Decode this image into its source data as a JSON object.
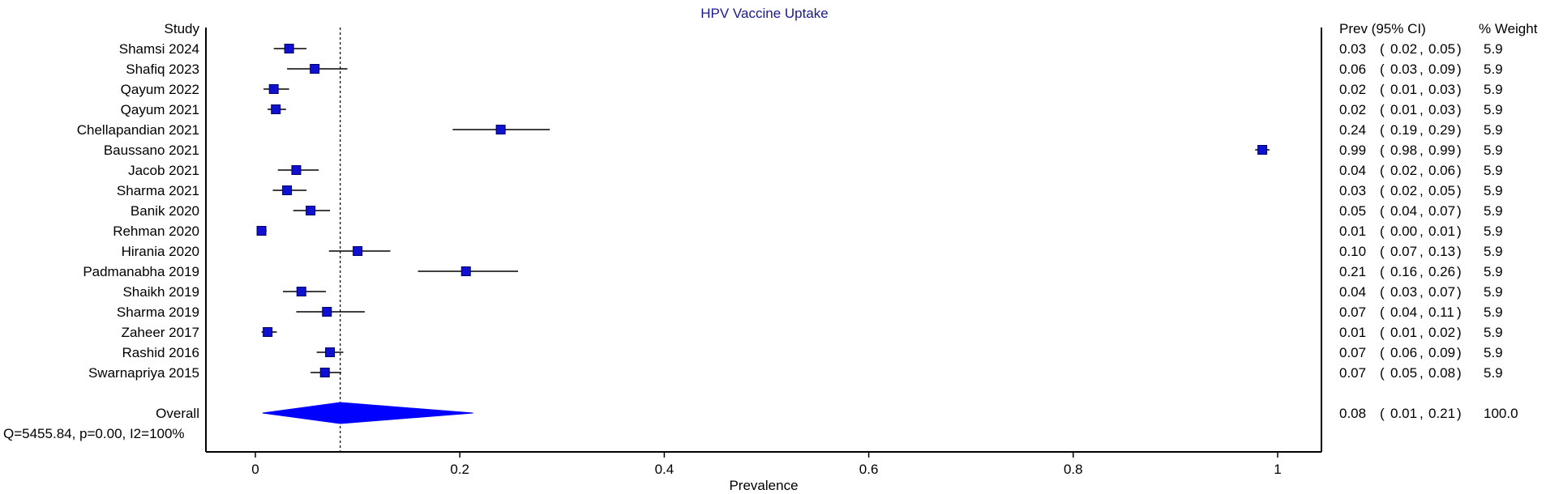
{
  "chart_data": {
    "type": "forest",
    "title": "HPV Vaccine Uptake",
    "xlabel": "Prevalence",
    "xlim": [
      -0.05,
      1.04
    ],
    "xticks": [
      0,
      0.2,
      0.4,
      0.6,
      0.8,
      1
    ],
    "xtick_labels": [
      "0",
      "0.2",
      "0.4",
      "0.6",
      "0.8",
      "1"
    ],
    "column_headers": {
      "study": "Study",
      "ci": "Prev (95% CI)",
      "weight": "% Weight"
    },
    "studies": [
      {
        "name": "Shamsi 2024",
        "prev": 0.033,
        "lo": 0.018,
        "hi": 0.05,
        "prev_text": "0.03",
        "lo_text": "0.02",
        "hi_text": "0.05",
        "weight": "5.9"
      },
      {
        "name": "Shafiq 2023",
        "prev": 0.058,
        "lo": 0.031,
        "hi": 0.09,
        "prev_text": "0.06",
        "lo_text": "0.03",
        "hi_text": "0.09",
        "weight": "5.9"
      },
      {
        "name": "Qayum 2022",
        "prev": 0.018,
        "lo": 0.008,
        "hi": 0.033,
        "prev_text": "0.02",
        "lo_text": "0.01",
        "hi_text": "0.03",
        "weight": "5.9"
      },
      {
        "name": "Qayum 2021",
        "prev": 0.02,
        "lo": 0.012,
        "hi": 0.03,
        "prev_text": "0.02",
        "lo_text": "0.01",
        "hi_text": "0.03",
        "weight": "5.9"
      },
      {
        "name": "Chellapandian 2021",
        "prev": 0.24,
        "lo": 0.193,
        "hi": 0.288,
        "prev_text": "0.24",
        "lo_text": "0.19",
        "hi_text": "0.29",
        "weight": "5.9"
      },
      {
        "name": "Baussano 2021",
        "prev": 0.985,
        "lo": 0.978,
        "hi": 0.992,
        "prev_text": "0.99",
        "lo_text": "0.98",
        "hi_text": "0.99",
        "weight": "5.9"
      },
      {
        "name": "Jacob 2021",
        "prev": 0.04,
        "lo": 0.022,
        "hi": 0.062,
        "prev_text": "0.04",
        "lo_text": "0.02",
        "hi_text": "0.06",
        "weight": "5.9"
      },
      {
        "name": "Sharma 2021",
        "prev": 0.031,
        "lo": 0.017,
        "hi": 0.05,
        "prev_text": "0.03",
        "lo_text": "0.02",
        "hi_text": "0.05",
        "weight": "5.9"
      },
      {
        "name": "Banik 2020",
        "prev": 0.054,
        "lo": 0.037,
        "hi": 0.073,
        "prev_text": "0.05",
        "lo_text": "0.04",
        "hi_text": "0.07",
        "weight": "5.9"
      },
      {
        "name": "Rehman 2020",
        "prev": 0.006,
        "lo": 0.002,
        "hi": 0.011,
        "prev_text": "0.01",
        "lo_text": "0.00",
        "hi_text": "0.01",
        "weight": "5.9"
      },
      {
        "name": "Hirania 2020",
        "prev": 0.1,
        "lo": 0.072,
        "hi": 0.132,
        "prev_text": "0.10",
        "lo_text": "0.07",
        "hi_text": "0.13",
        "weight": "5.9"
      },
      {
        "name": "Padmanabha 2019",
        "prev": 0.206,
        "lo": 0.159,
        "hi": 0.257,
        "prev_text": "0.21",
        "lo_text": "0.16",
        "hi_text": "0.26",
        "weight": "5.9"
      },
      {
        "name": "Shaikh 2019",
        "prev": 0.045,
        "lo": 0.027,
        "hi": 0.069,
        "prev_text": "0.04",
        "lo_text": "0.03",
        "hi_text": "0.07",
        "weight": "5.9"
      },
      {
        "name": "Sharma 2019",
        "prev": 0.07,
        "lo": 0.04,
        "hi": 0.107,
        "prev_text": "0.07",
        "lo_text": "0.04",
        "hi_text": "0.11",
        "weight": "5.9"
      },
      {
        "name": "Zaheer 2017",
        "prev": 0.012,
        "lo": 0.006,
        "hi": 0.021,
        "prev_text": "0.01",
        "lo_text": "0.01",
        "hi_text": "0.02",
        "weight": "5.9"
      },
      {
        "name": "Rashid 2016",
        "prev": 0.073,
        "lo": 0.06,
        "hi": 0.086,
        "prev_text": "0.07",
        "lo_text": "0.06",
        "hi_text": "0.09",
        "weight": "5.9"
      },
      {
        "name": "Swarnapriya 2015",
        "prev": 0.068,
        "lo": 0.054,
        "hi": 0.084,
        "prev_text": "0.07",
        "lo_text": "0.05",
        "hi_text": "0.08",
        "weight": "5.9"
      }
    ],
    "overall": {
      "name": "Overall",
      "prev": 0.083,
      "lo": 0.007,
      "hi": 0.213,
      "prev_text": "0.08",
      "lo_text": "0.01",
      "hi_text": "0.21",
      "weight": "100.0"
    },
    "heterogeneity": "Q=5455.84, p=0.00, I2=100%",
    "reference_line": 0.083,
    "colors": {
      "marker": "#1010d0",
      "diamond": "#0000ff",
      "title": "#1a1a8c",
      "axis": "#000000"
    }
  }
}
